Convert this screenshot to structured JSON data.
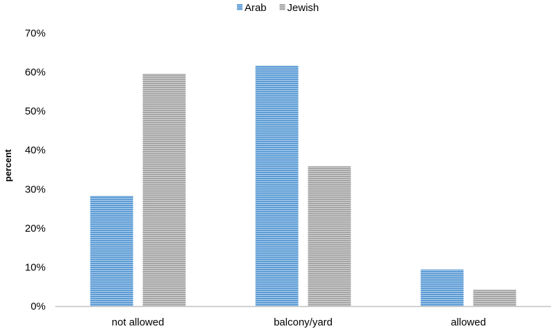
{
  "chart_data": {
    "type": "bar",
    "categories": [
      "not allowed",
      "balcony/yard",
      "allowed"
    ],
    "series": [
      {
        "name": "Arab",
        "values": [
          28.3,
          61.7,
          9.4
        ],
        "color": "#5b9bd5"
      },
      {
        "name": "Jewish",
        "values": [
          59.6,
          35.9,
          4.2
        ],
        "color": "#a5a5a5"
      }
    ],
    "ylabel": "percent",
    "ylim": [
      0,
      70
    ],
    "yticks": [
      0,
      10,
      20,
      30,
      40,
      50,
      60,
      70
    ],
    "ytick_labels": [
      "0%",
      "10%",
      "20%",
      "30%",
      "40%",
      "50%",
      "60%",
      "70%"
    ],
    "grid": false,
    "legend": "top"
  }
}
